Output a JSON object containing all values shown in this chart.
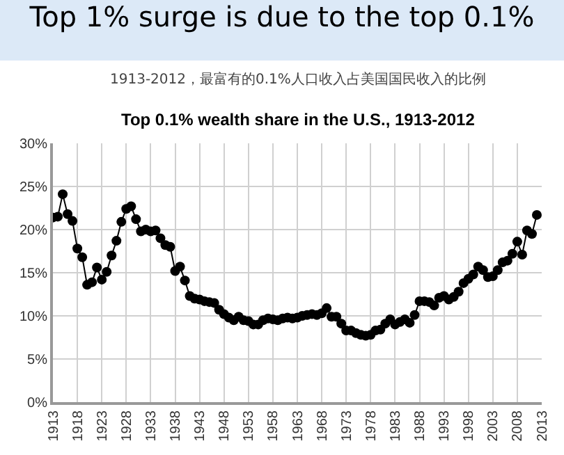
{
  "chart_data": {
    "type": "line",
    "title": "Top 1% surge is due to the top 0.1%",
    "subtitle": "1913-2012，最富有的0.1%人口收入占美国国民收入的比例",
    "annotations": [
      "Top 0.1% wealth share in the U.S., 1913-2012"
    ],
    "x": [
      1913,
      1914,
      1915,
      1916,
      1917,
      1918,
      1919,
      1920,
      1921,
      1922,
      1923,
      1924,
      1925,
      1926,
      1927,
      1928,
      1929,
      1930,
      1931,
      1932,
      1933,
      1934,
      1935,
      1936,
      1937,
      1938,
      1939,
      1940,
      1941,
      1942,
      1943,
      1944,
      1945,
      1946,
      1947,
      1948,
      1949,
      1950,
      1951,
      1952,
      1953,
      1954,
      1955,
      1956,
      1957,
      1958,
      1959,
      1960,
      1961,
      1962,
      1963,
      1964,
      1965,
      1966,
      1967,
      1968,
      1969,
      1970,
      1971,
      1972,
      1973,
      1974,
      1975,
      1976,
      1977,
      1978,
      1979,
      1980,
      1981,
      1982,
      1983,
      1984,
      1985,
      1986,
      1987,
      1988,
      1989,
      1990,
      1991,
      1992,
      1993,
      1994,
      1995,
      1996,
      1997,
      1998,
      1999,
      2000,
      2001,
      2002,
      2003,
      2004,
      2005,
      2006,
      2007,
      2008,
      2009,
      2010,
      2011,
      2012
    ],
    "series": [
      {
        "color": "#000000",
        "values": [
          21.4,
          21.5,
          24.1,
          21.8,
          21.0,
          17.8,
          16.8,
          13.6,
          13.9,
          15.6,
          14.2,
          15.1,
          17.0,
          18.7,
          20.9,
          22.4,
          22.7,
          21.2,
          19.8,
          20.0,
          19.8,
          19.9,
          19.0,
          18.2,
          18.0,
          15.2,
          15.7,
          14.1,
          12.3,
          12.0,
          11.9,
          11.7,
          11.6,
          11.5,
          10.7,
          10.2,
          9.8,
          9.5,
          9.9,
          9.5,
          9.4,
          9.0,
          9.0,
          9.5,
          9.7,
          9.6,
          9.5,
          9.7,
          9.8,
          9.7,
          9.8,
          10.0,
          10.1,
          10.2,
          10.1,
          10.3,
          10.9,
          9.9,
          9.9,
          9.1,
          8.3,
          8.3,
          8.0,
          7.8,
          7.7,
          7.8,
          8.3,
          8.4,
          9.1,
          9.6,
          9.0,
          9.3,
          9.6,
          9.2,
          10.1,
          11.7,
          11.7,
          11.6,
          11.2,
          12.1,
          12.3,
          11.9,
          12.2,
          12.8,
          13.8,
          14.3,
          14.8,
          15.7,
          15.3,
          14.5,
          14.6,
          15.3,
          16.2,
          16.4,
          17.2,
          18.6,
          17.1,
          19.9,
          19.5,
          21.7
        ]
      }
    ],
    "xlim": [
      1913,
      2013
    ],
    "xticks": [
      1913,
      1918,
      1923,
      1928,
      1933,
      1938,
      1943,
      1948,
      1953,
      1958,
      1963,
      1968,
      1973,
      1978,
      1983,
      1988,
      1993,
      1998,
      2003,
      2008,
      2013
    ],
    "ylim": [
      0,
      30
    ],
    "yticks": [
      {
        "value": 0,
        "label": "0%"
      },
      {
        "value": 5,
        "label": "5%"
      },
      {
        "value": 10,
        "label": "10%"
      },
      {
        "value": 15,
        "label": "15%"
      },
      {
        "value": 20,
        "label": "20%"
      },
      {
        "value": 25,
        "label": "25%"
      },
      {
        "value": 30,
        "label": "30%"
      }
    ],
    "grid": true,
    "marker": "circle",
    "line_style": "solid"
  }
}
